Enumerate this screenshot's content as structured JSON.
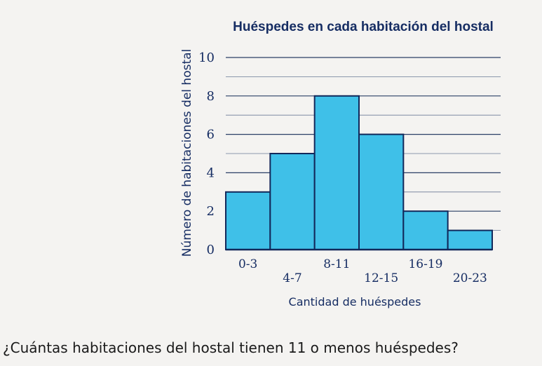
{
  "chart_data": {
    "type": "bar",
    "title": "Huéspedes en cada habitación del hostal",
    "xlabel": "Cantidad de huéspedes",
    "ylabel": "Número de habitaciones del hostal",
    "categories": [
      "0-3",
      "4-7",
      "8-11",
      "12-15",
      "16-19",
      "20-23"
    ],
    "values": [
      3,
      5,
      8,
      6,
      2,
      1
    ],
    "ylim": [
      0,
      10
    ],
    "yticks": [
      0,
      2,
      4,
      6,
      8,
      10
    ],
    "grid": true,
    "bar_color": "#3fc0e8",
    "bar_edge_color": "#12285a"
  },
  "question": "¿Cuántas habitaciones del hostal tienen 11 o menos huéspedes?"
}
